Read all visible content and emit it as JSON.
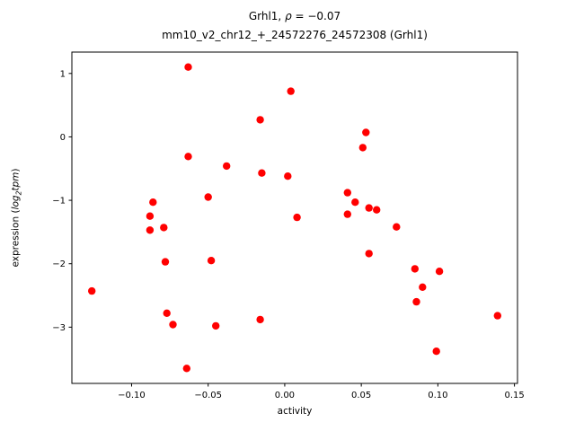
{
  "chart_data": {
    "type": "scatter",
    "title": {
      "line1_prefix": "Grhl1, ",
      "line1_rho": "ρ",
      "line1_suffix": " = −0.07",
      "line2": "mm10_v2_chr12_+_24572276_24572308 (Grhl1)"
    },
    "xlabel": "activity",
    "ylabel": {
      "prefix": "expression (",
      "log": "log",
      "sub": "2",
      "tpm": "tpm",
      "suffix": ")"
    },
    "xlim": [
      -0.139,
      0.152
    ],
    "ylim": [
      -3.887,
      1.337
    ],
    "xticks": [
      {
        "v": -0.1,
        "label": "−0.10"
      },
      {
        "v": -0.05,
        "label": "−0.05"
      },
      {
        "v": 0.0,
        "label": "0.00"
      },
      {
        "v": 0.05,
        "label": "0.05"
      },
      {
        "v": 0.1,
        "label": "0.10"
      },
      {
        "v": 0.15,
        "label": "0.15"
      }
    ],
    "yticks": [
      {
        "v": 1,
        "label": "1"
      },
      {
        "v": 0,
        "label": "0"
      },
      {
        "v": -1,
        "label": "−1"
      },
      {
        "v": -2,
        "label": "−2"
      },
      {
        "v": -3,
        "label": "−3"
      }
    ],
    "legend": null,
    "grid": false,
    "marker_color": "#ff0000",
    "points": [
      [
        -0.126,
        -2.43
      ],
      [
        -0.088,
        -1.25
      ],
      [
        -0.088,
        -1.47
      ],
      [
        -0.086,
        -1.03
      ],
      [
        -0.079,
        -1.43
      ],
      [
        -0.078,
        -1.97
      ],
      [
        -0.077,
        -2.78
      ],
      [
        -0.073,
        -2.96
      ],
      [
        -0.063,
        1.1
      ],
      [
        -0.063,
        -0.31
      ],
      [
        -0.064,
        -3.65
      ],
      [
        -0.05,
        -0.95
      ],
      [
        -0.048,
        -1.95
      ],
      [
        -0.045,
        -2.98
      ],
      [
        -0.038,
        -0.46
      ],
      [
        -0.016,
        0.27
      ],
      [
        -0.015,
        -0.57
      ],
      [
        -0.016,
        -2.88
      ],
      [
        0.004,
        0.72
      ],
      [
        0.002,
        -0.62
      ],
      [
        0.008,
        -1.27
      ],
      [
        0.041,
        -0.88
      ],
      [
        0.041,
        -1.22
      ],
      [
        0.046,
        -1.03
      ],
      [
        0.051,
        -0.17
      ],
      [
        0.053,
        0.07
      ],
      [
        0.055,
        -1.12
      ],
      [
        0.055,
        -1.84
      ],
      [
        0.06,
        -1.15
      ],
      [
        0.073,
        -1.42
      ],
      [
        0.085,
        -2.08
      ],
      [
        0.086,
        -2.6
      ],
      [
        0.09,
        -2.37
      ],
      [
        0.101,
        -2.12
      ],
      [
        0.099,
        -3.38
      ],
      [
        0.139,
        -2.82
      ]
    ]
  }
}
